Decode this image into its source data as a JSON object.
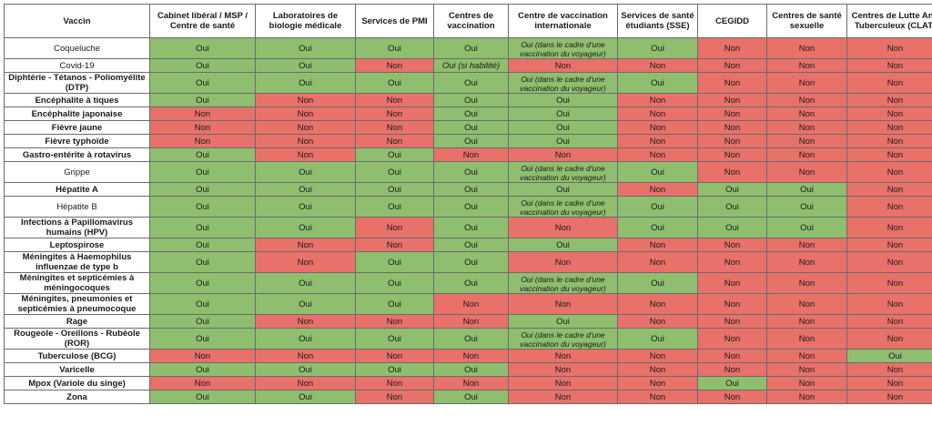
{
  "colors": {
    "yes": "#8fbe6e",
    "no": "#e8716a"
  },
  "headers": [
    "Vaccin",
    "Cabinet libéral / MSP / Centre de santé",
    "Laboratoires de biologie médicale",
    "Services de PMI",
    "Centres de vaccination",
    "Centre de vaccination internationale",
    "Services de santé étudiants (SSE)",
    "CEGIDD",
    "Centres de santé sexuelle",
    "Centres de Lutte Anti Tuberculeux (CLAT)"
  ],
  "note_international": "Oui (dans le cadre d'une vaccination du voyageur)",
  "note_habilite": "(si habilité)",
  "rows": [
    {
      "name": "Coqueluche",
      "values": [
        "Oui",
        "Oui",
        "Oui",
        "Oui",
        "Oui (dans le cadre d'une vaccination du voyageur)",
        "Oui",
        "Non",
        "Non",
        "Non"
      ]
    },
    {
      "name": "Covid-19",
      "values": [
        "Oui",
        "Oui",
        "Non",
        "Oui (si habilité)",
        "Non",
        "Non",
        "Non",
        "Non",
        "Non"
      ]
    },
    {
      "name": "Diphtérie - Tétanos - Poliomyélite (DTP)",
      "values": [
        "Oui",
        "Oui",
        "Oui",
        "Oui",
        "Oui (dans le cadre d'une vaccination du voyageur)",
        "Oui",
        "Non",
        "Non",
        "Non"
      ]
    },
    {
      "name": "Encéphalite à tiques",
      "values": [
        "Oui",
        "Non",
        "Non",
        "Oui",
        "Oui",
        "Non",
        "Non",
        "Non",
        "Non"
      ]
    },
    {
      "name": "Encéphalite japonaise",
      "values": [
        "Non",
        "Non",
        "Non",
        "Oui",
        "Oui",
        "Non",
        "Non",
        "Non",
        "Non"
      ]
    },
    {
      "name": "Fièvre jaune",
      "values": [
        "Non",
        "Non",
        "Non",
        "Oui",
        "Oui",
        "Non",
        "Non",
        "Non",
        "Non"
      ]
    },
    {
      "name": "Fièvre typhoïde",
      "values": [
        "Non",
        "Non",
        "Non",
        "Oui",
        "Oui",
        "Non",
        "Non",
        "Non",
        "Non"
      ]
    },
    {
      "name": "Gastro-entérite à rotavirus",
      "values": [
        "Oui",
        "Non",
        "Oui",
        "Non",
        "Non",
        "Non",
        "Non",
        "Non",
        "Non"
      ]
    },
    {
      "name": "Grippe",
      "values": [
        "Oui",
        "Oui",
        "Oui",
        "Oui",
        "Oui (dans le cadre d'une vaccination du voyageur)",
        "Oui",
        "Non",
        "Non",
        "Non"
      ]
    },
    {
      "name": "Hépatite A",
      "values": [
        "Oui",
        "Oui",
        "Oui",
        "Oui",
        "Oui",
        "Non",
        "Oui",
        "Oui",
        "Non"
      ]
    },
    {
      "name": "Hépatite B",
      "values": [
        "Oui",
        "Oui",
        "Oui",
        "Oui",
        "Oui (dans le cadre d'une vaccination du voyageur)",
        "Oui",
        "Oui",
        "Oui",
        "Non"
      ]
    },
    {
      "name": "Infections à Papillomavirus humains (HPV)",
      "values": [
        "Oui",
        "Oui",
        "Non",
        "Oui",
        "Non",
        "Oui",
        "Oui",
        "Oui",
        "Non"
      ]
    },
    {
      "name": "Leptospirose",
      "values": [
        "Oui",
        "Non",
        "Non",
        "Oui",
        "Oui",
        "Non",
        "Non",
        "Non",
        "Non"
      ]
    },
    {
      "name": "Méningites à Haemophilus influenzae de type b",
      "values": [
        "Oui",
        "Non",
        "Oui",
        "Oui",
        "Non",
        "Non",
        "Non",
        "Non",
        "Non"
      ]
    },
    {
      "name": "Méningites et septicémies à méningocoques",
      "values": [
        "Oui",
        "Oui",
        "Oui",
        "Oui",
        "Oui (dans le cadre d'une vaccination du voyageur)",
        "Oui",
        "Non",
        "Non",
        "Non"
      ]
    },
    {
      "name": "Méningites, pneumonies et septicémies à pneumocoque",
      "values": [
        "Oui",
        "Oui",
        "Oui",
        "Non",
        "Non",
        "Non",
        "Non",
        "Non",
        "Non"
      ]
    },
    {
      "name": "Rage",
      "values": [
        "Oui",
        "Non",
        "Non",
        "Non",
        "Oui",
        "Non",
        "Non",
        "Non",
        "Non"
      ]
    },
    {
      "name": "Rougeole - Oreillons - Rubéole (ROR)",
      "values": [
        "Oui",
        "Oui",
        "Oui",
        "Oui",
        "Oui (dans le cadre d'une vaccination du voyageur)",
        "Oui",
        "Non",
        "Non",
        "Non"
      ]
    },
    {
      "name": "Tuberculose (BCG)",
      "values": [
        "Non",
        "Non",
        "Non",
        "Non",
        "Non",
        "Non",
        "Non",
        "Non",
        "Oui"
      ]
    },
    {
      "name": "Varicelle",
      "values": [
        "Oui",
        "Oui",
        "Oui",
        "Oui",
        "Non",
        "Non",
        "Non",
        "Non",
        "Non"
      ]
    },
    {
      "name": "Mpox (Variole du singe)",
      "values": [
        "Non",
        "Non",
        "Non",
        "Non",
        "Non",
        "Non",
        "Oui",
        "Non",
        "Non"
      ]
    },
    {
      "name": "Zona",
      "values": [
        "Oui",
        "Oui",
        "Non",
        "Oui",
        "Non",
        "Non",
        "Non",
        "Non",
        "Non"
      ]
    }
  ]
}
